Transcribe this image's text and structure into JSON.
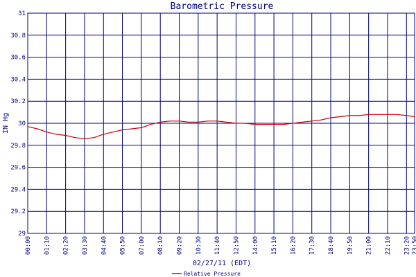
{
  "chart_data": {
    "type": "line",
    "title": "Barometric Pressure",
    "xlabel": "02/27/11 (EDT)",
    "ylabel": "IN Hg",
    "ylim": [
      29,
      31
    ],
    "yticks": [
      "29",
      "29.2",
      "29.4",
      "29.6",
      "29.8",
      "30",
      "30.2",
      "30.4",
      "30.6",
      "30.8",
      "31"
    ],
    "xticks": [
      "00:00",
      "01:10",
      "02:20",
      "03:30",
      "04:40",
      "05:50",
      "07:00",
      "08:10",
      "09:20",
      "10:30",
      "11:40",
      "12:50",
      "14:00",
      "15:10",
      "16:20",
      "17:30",
      "18:40",
      "19:50",
      "21:00",
      "22:10",
      "23:20",
      "23:50"
    ],
    "xlim_minutes": [
      0,
      1430
    ],
    "grid": true,
    "legend_position": "bottom",
    "series": [
      {
        "name": "Relative Pressure",
        "color": "#cc0000",
        "x": [
          "00:00",
          "00:35",
          "01:10",
          "01:45",
          "02:20",
          "02:55",
          "03:30",
          "04:05",
          "04:40",
          "05:15",
          "05:50",
          "06:25",
          "07:00",
          "07:35",
          "08:10",
          "08:45",
          "09:20",
          "09:55",
          "10:30",
          "11:05",
          "11:40",
          "12:15",
          "12:50",
          "13:25",
          "14:00",
          "14:35",
          "15:10",
          "15:45",
          "16:20",
          "16:55",
          "17:30",
          "18:05",
          "18:40",
          "19:15",
          "19:50",
          "20:25",
          "21:00",
          "21:35",
          "22:10",
          "22:45",
          "23:20",
          "23:50"
        ],
        "values": [
          29.97,
          29.95,
          29.92,
          29.9,
          29.89,
          29.87,
          29.86,
          29.87,
          29.9,
          29.92,
          29.94,
          29.95,
          29.96,
          29.99,
          30.01,
          30.02,
          30.02,
          30.01,
          30.01,
          30.02,
          30.02,
          30.01,
          30.0,
          30.0,
          29.99,
          29.99,
          29.99,
          29.99,
          30.0,
          30.01,
          30.02,
          30.03,
          30.05,
          30.06,
          30.07,
          30.07,
          30.08,
          30.08,
          30.08,
          30.08,
          30.07,
          30.06
        ]
      }
    ]
  }
}
